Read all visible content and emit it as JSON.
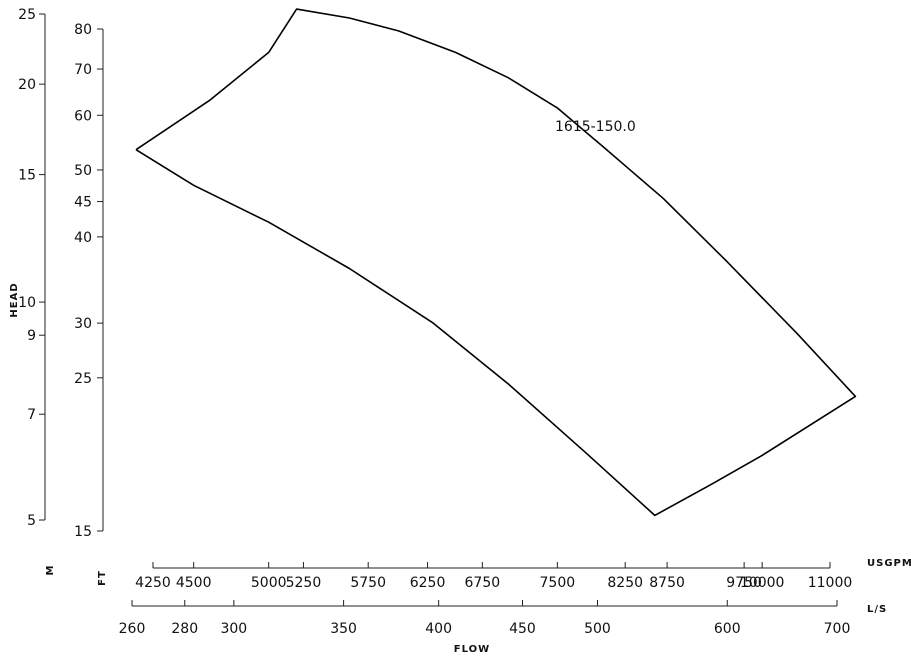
{
  "chart_data": {
    "type": "line",
    "title": "",
    "ylabel": "HEAD",
    "xlabel": "FLOW",
    "grid": false,
    "y_axes": [
      {
        "unit": "M",
        "scale": "log",
        "ticks": [
          5,
          7,
          9,
          10,
          15,
          20,
          25
        ]
      },
      {
        "unit": "FT",
        "scale": "log",
        "ticks": [
          15,
          25,
          30,
          40,
          45,
          50,
          60,
          70,
          80
        ]
      }
    ],
    "x_axes": [
      {
        "unit": "USGPM",
        "scale": "log",
        "ticks": [
          4250,
          4500,
          5000,
          5250,
          5750,
          6250,
          6750,
          7500,
          8250,
          8750,
          9750,
          10000,
          11000
        ]
      },
      {
        "unit": "L/S",
        "scale": "log",
        "ticks": [
          260,
          280,
          300,
          350,
          400,
          450,
          500,
          600,
          700
        ]
      }
    ],
    "series": [
      {
        "name": "1615-150.0",
        "x_unit": "USGPM",
        "y_unit": "FT",
        "x": [
          4150,
          4600,
          5000,
          5200,
          5600,
          6000,
          6500,
          7000,
          7500,
          8000,
          8700,
          9500,
          10500,
          11400,
          10000,
          9300,
          8600,
          7800,
          7000,
          6300,
          5600,
          5000,
          4500,
          4150
        ],
        "y": [
          53.5,
          63,
          74,
          85.5,
          83,
          79.5,
          74,
          68,
          61.5,
          54,
          45.5,
          37,
          29,
          23.5,
          19.3,
          17.5,
          15.8,
          19.5,
          24.5,
          30,
          36,
          42,
          47.5,
          53.5
        ]
      }
    ]
  }
}
